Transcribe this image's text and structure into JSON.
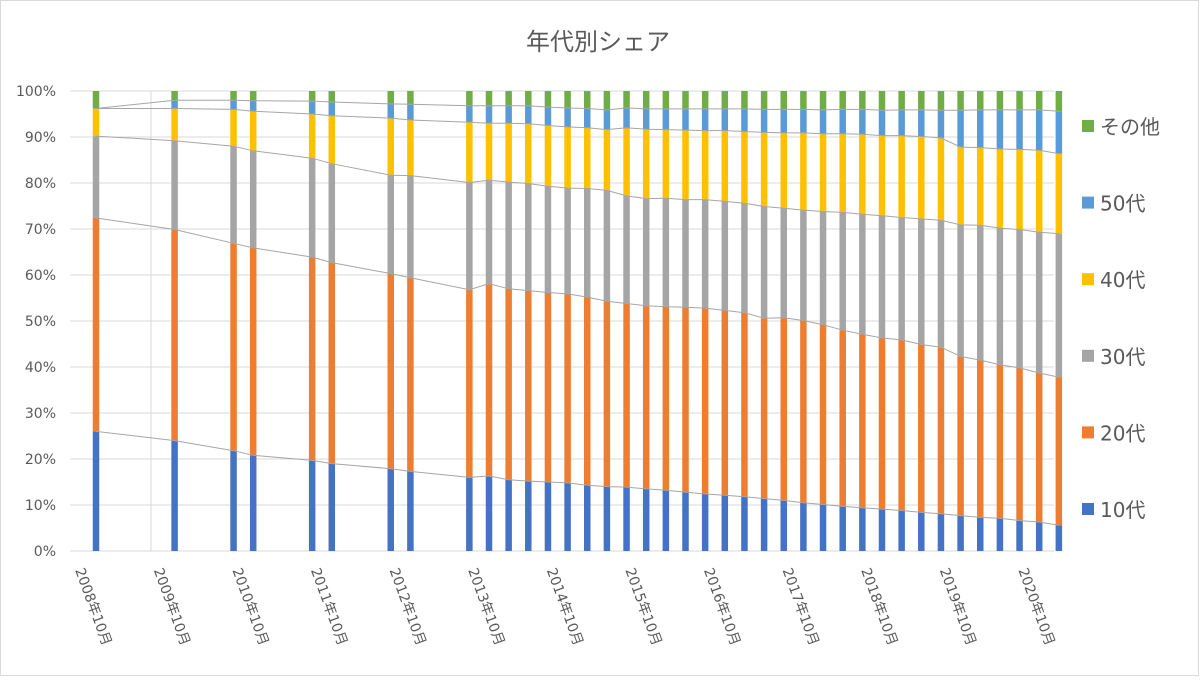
{
  "chart_data": {
    "type": "bar",
    "stacked": "percent",
    "title": "年代別シェア",
    "y_ticks": [
      "0%",
      "10%",
      "20%",
      "30%",
      "40%",
      "50%",
      "60%",
      "70%",
      "80%",
      "90%",
      "100%"
    ],
    "ylim": [
      0,
      100
    ],
    "grid": true,
    "legend_position": "right",
    "x_tick_labels": [
      "2008年10月",
      "2009年10月",
      "2010年10月",
      "2011年10月",
      "2012年10月",
      "2013年10月",
      "2014年10月",
      "2015年10月",
      "2016年10月",
      "2017年10月",
      "2018年10月",
      "2019年10月",
      "2020年10月"
    ],
    "categories": [
      "2008-10",
      "2009-10",
      "2010-07",
      "2010-10",
      "2011-07",
      "2011-10",
      "2012-07",
      "2012-10",
      "2013-07",
      "2013-10",
      "2014-01",
      "2014-04",
      "2014-07",
      "2014-10",
      "2015-01",
      "2015-04",
      "2015-07",
      "2015-10",
      "2016-01",
      "2016-04",
      "2016-07",
      "2016-10",
      "2017-01",
      "2017-04",
      "2017-07",
      "2017-10",
      "2018-01",
      "2018-04",
      "2018-07",
      "2018-10",
      "2019-01",
      "2019-04",
      "2019-07",
      "2019-10",
      "2020-01",
      "2020-04",
      "2020-07",
      "2020-10",
      "2021-01"
    ],
    "series": [
      {
        "name": "10代",
        "color": "#4472C4",
        "values": [
          26,
          24,
          21.8,
          20.8,
          19.7,
          19,
          17.9,
          17.3,
          16,
          16.3,
          15.5,
          15.2,
          15,
          14.8,
          14.3,
          14,
          13.9,
          13.5,
          13.2,
          12.8,
          12.4,
          12.1,
          11.8,
          11.4,
          11,
          10.5,
          10.1,
          9.7,
          9.4,
          9.1,
          8.8,
          8.4,
          8.1,
          7.7,
          7.3,
          7.1,
          6.6,
          6.3,
          5.6
        ]
      },
      {
        "name": "20代",
        "color": "#ED7D31",
        "values": [
          46.4,
          45.9,
          45.1,
          45.1,
          44.2,
          43.7,
          42.4,
          42.1,
          40.8,
          41.8,
          41.5,
          41.4,
          41.2,
          41.1,
          40.9,
          40.3,
          39.9,
          39.8,
          39.9,
          40.2,
          40.4,
          40.2,
          40,
          39.2,
          39.7,
          39.6,
          39.1,
          38.3,
          37.7,
          37.2,
          37.1,
          36.5,
          36.2,
          34.6,
          34.2,
          33.4,
          33.2,
          32.4,
          32.2
        ]
      },
      {
        "name": "30代",
        "color": "#A5A5A5",
        "values": [
          17.8,
          19.3,
          21.1,
          21.1,
          21.5,
          21.5,
          21.4,
          22.2,
          23.3,
          22.5,
          23.2,
          23.3,
          23.1,
          23,
          23.6,
          24.1,
          23.4,
          23.3,
          23.6,
          23.4,
          23.6,
          23.7,
          23.8,
          24.3,
          23.8,
          24,
          24.6,
          25.6,
          26.1,
          26.6,
          26.6,
          27.3,
          27.6,
          28.6,
          29.3,
          29.7,
          30.1,
          30.6,
          31.2
        ]
      },
      {
        "name": "40代",
        "color": "#FFC000",
        "values": [
          6,
          7,
          8,
          8.6,
          9.6,
          10.4,
          12.4,
          12.1,
          13.1,
          12.4,
          12.8,
          13,
          13.2,
          13.3,
          13.2,
          13.2,
          14.8,
          15.1,
          14.9,
          15.1,
          15,
          15.4,
          15.6,
          16.1,
          16.4,
          16.8,
          16.9,
          17.1,
          17.4,
          17.4,
          17.8,
          17.9,
          17.9,
          16.9,
          16.9,
          17.2,
          17.4,
          17.8,
          17.4
        ]
      },
      {
        "name": "50代",
        "color": "#5B9BD5",
        "values": [
          0,
          1.8,
          2,
          2.3,
          2.8,
          3,
          3.1,
          3.4,
          3.6,
          3.8,
          3.8,
          3.9,
          4,
          4.1,
          4.2,
          4.3,
          4.3,
          4.4,
          4.5,
          4.6,
          4.7,
          4.7,
          4.9,
          5,
          5.1,
          5.1,
          5.2,
          5.3,
          5.4,
          5.5,
          5.6,
          5.8,
          6,
          8,
          8.2,
          8.5,
          8.6,
          8.8,
          9.2
        ]
      },
      {
        "name": "その他",
        "color": "#70AD47",
        "values": [
          3.8,
          2,
          2,
          2.1,
          2.2,
          2.4,
          2.8,
          2.9,
          3.2,
          3.2,
          3.2,
          3.2,
          3.5,
          3.7,
          3.8,
          4.1,
          3.7,
          3.9,
          3.9,
          3.9,
          3.9,
          3.9,
          3.9,
          4,
          4,
          4,
          4.1,
          4,
          4,
          4.2,
          4.1,
          4.1,
          4.2,
          4.2,
          4.1,
          4.1,
          4.1,
          4.1,
          4.4
        ]
      }
    ]
  }
}
